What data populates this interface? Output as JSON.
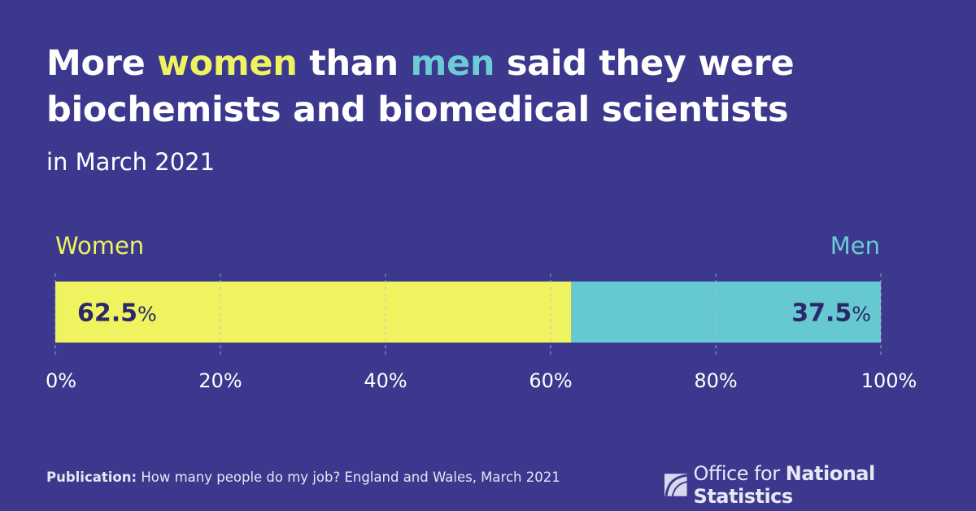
{
  "title": {
    "part1": "More ",
    "women": "women",
    "part2": " than ",
    "men": "men",
    "part3": " said they were",
    "line2": "biochemists and biomedical scientists"
  },
  "subtitle": "in March 2021",
  "chart_data": {
    "type": "bar",
    "orientation": "horizontal-stacked",
    "categories": [
      "Biochemists and biomedical scientists"
    ],
    "series": [
      {
        "name": "Women",
        "values": [
          62.5
        ],
        "label_num": "62.5",
        "color": "#eff35f"
      },
      {
        "name": "Men",
        "values": [
          37.5
        ],
        "label_num": "37.5",
        "color": "#66c8d0"
      }
    ],
    "xlim": [
      0,
      100
    ],
    "xticks": [
      0,
      20,
      40,
      60,
      80,
      100
    ],
    "xtick_labels": [
      "0%",
      "20%",
      "40%",
      "60%",
      "80%",
      "100%"
    ],
    "unit": "%",
    "grid": true,
    "legend": {
      "women": "Women",
      "men": "Men"
    }
  },
  "footer": {
    "label": "Publication:",
    "text": " How many people do my job? England and Wales, March 2021"
  },
  "logo": {
    "light": "Office for ",
    "bold": "National Statistics"
  },
  "colors": {
    "background": "#3c388e",
    "women": "#eff35f",
    "men": "#66c8d0",
    "value_text": "#2b286b"
  }
}
